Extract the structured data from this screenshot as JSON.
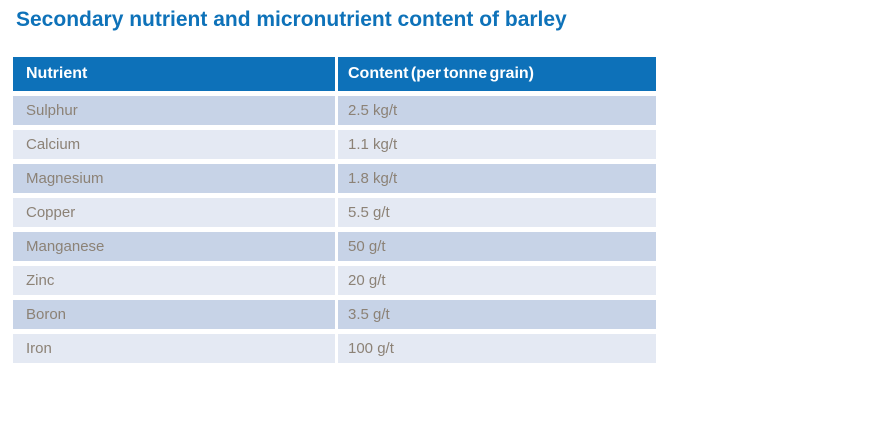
{
  "page": {
    "title": "Secondary nutrient and micronutrient content of barley"
  },
  "table": {
    "columns": [
      "Nutrient",
      "Content (per tonne grain)"
    ],
    "rows": [
      {
        "nutrient": "Sulphur",
        "content": "2.5 kg/t"
      },
      {
        "nutrient": "Calcium",
        "content": "1.1 kg/t"
      },
      {
        "nutrient": "Magnesium",
        "content": "1.8 kg/t"
      },
      {
        "nutrient": "Copper",
        "content": "5.5 g/t"
      },
      {
        "nutrient": "Manganese",
        "content": "50 g/t"
      },
      {
        "nutrient": "Zinc",
        "content": "20 g/t"
      },
      {
        "nutrient": "Boron",
        "content": "3.5 g/t"
      },
      {
        "nutrient": "Iron",
        "content": "100 g/t"
      }
    ]
  },
  "colors": {
    "title_text": "#0e72b9",
    "header_bg": "#0d71b9",
    "header_text": "#ffffff",
    "row_dark": "#c7d3e7",
    "row_light": "#e4e9f3",
    "body_text": "#8c8276"
  }
}
